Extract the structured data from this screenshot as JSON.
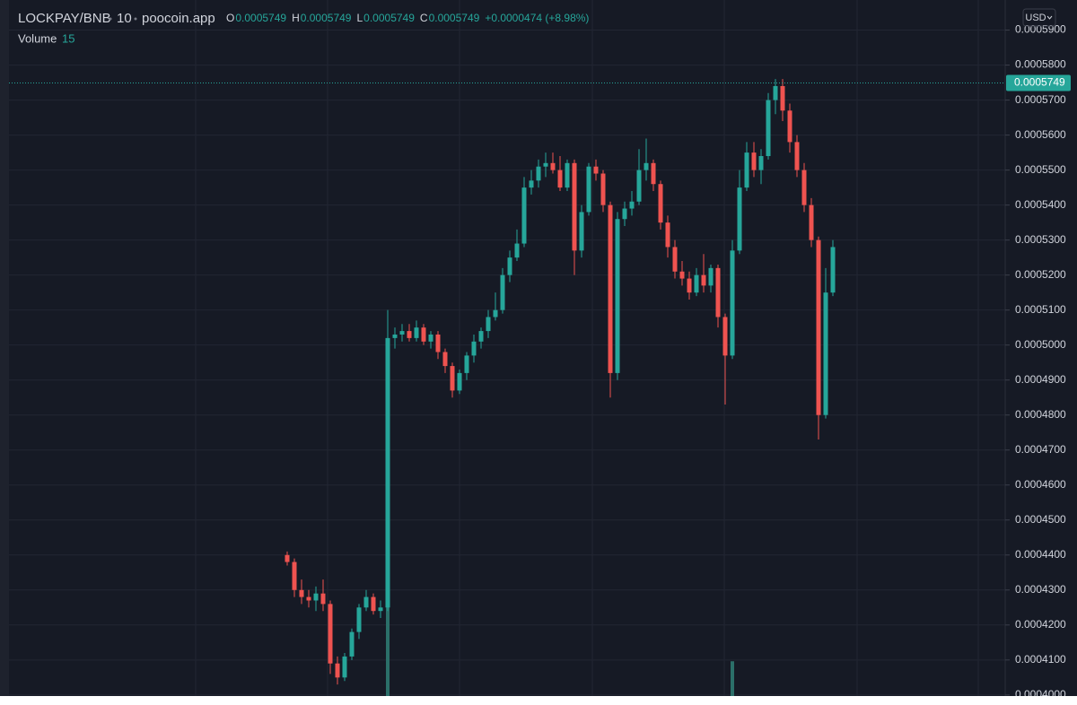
{
  "chart_data": {
    "type": "candlestick",
    "symbol": "LOCKPAY/BNB",
    "interval": "10",
    "source": "poocoin.app",
    "ohlc_legend": [
      {
        "label": "O",
        "value": "0.0005749"
      },
      {
        "label": "H",
        "value": "0.0005749"
      },
      {
        "label": "L",
        "value": "0.0005749"
      },
      {
        "label": "C",
        "value": "0.0005749"
      }
    ],
    "change": "+0.0000474 (+8.98%)",
    "volume_label": "Volume",
    "volume_value": "15",
    "currency": "USD",
    "last_price": 0.0005749,
    "up_color": "#26a69a",
    "down_color": "#ef5350",
    "volume_color": "#2b6f69",
    "ylim": [
      0.0003997,
      0.0005986
    ],
    "yticks": [
      {
        "value": 0.0004,
        "label": "0.0004000"
      },
      {
        "value": 0.00041,
        "label": "0.0004100"
      },
      {
        "value": 0.00042,
        "label": "0.0004200"
      },
      {
        "value": 0.00043,
        "label": "0.0004300"
      },
      {
        "value": 0.00044,
        "label": "0.0004400"
      },
      {
        "value": 0.00045,
        "label": "0.0004500"
      },
      {
        "value": 0.00046,
        "label": "0.0004600"
      },
      {
        "value": 0.00047,
        "label": "0.0004700"
      },
      {
        "value": 0.00048,
        "label": "0.0004800"
      },
      {
        "value": 0.00049,
        "label": "0.0004900"
      },
      {
        "value": 0.0005,
        "label": "0.0005000"
      },
      {
        "value": 0.00051,
        "label": "0.0005100"
      },
      {
        "value": 0.00052,
        "label": "0.0005200"
      },
      {
        "value": 0.00053,
        "label": "0.0005300"
      },
      {
        "value": 0.00054,
        "label": "0.0005400"
      },
      {
        "value": 0.00055,
        "label": "0.0005500"
      },
      {
        "value": 0.00056,
        "label": "0.0005600"
      },
      {
        "value": 0.00057,
        "label": "0.0005700"
      },
      {
        "value": 0.00058,
        "label": "0.0005800"
      },
      {
        "value": 0.00059,
        "label": "0.0005900"
      }
    ],
    "grid": true,
    "open": [
      0.00044,
      0.000438,
      0.00043,
      0.000428,
      0.000427,
      0.000429,
      0.000426,
      0.000409,
      0.000405,
      0.000411,
      0.000418,
      0.000425,
      0.000428,
      0.000424,
      0.000425,
      0.000502,
      0.000503,
      0.000504,
      0.000502,
      0.000505,
      0.000501,
      0.000503,
      0.000498,
      0.000494,
      0.000487,
      0.000492,
      0.000497,
      0.000501,
      0.000504,
      0.000508,
      0.00051,
      0.00052,
      0.000525,
      0.000529,
      0.000545,
      0.000547,
      0.000551,
      0.000552,
      0.00055,
      0.000545,
      0.000552,
      0.000527,
      0.000538,
      0.000551,
      0.000549,
      0.00054,
      0.000492,
      0.000536,
      0.000539,
      0.000541,
      0.00055,
      0.000552,
      0.000546,
      0.000535,
      0.000528,
      0.000521,
      0.000519,
      0.000515,
      0.00052,
      0.000517,
      0.000522,
      0.000508,
      0.000497,
      0.000527,
      0.000545,
      0.000555,
      0.00055,
      0.000554,
      0.00057,
      0.000574,
      0.000567,
      0.000558,
      0.00055,
      0.00054,
      0.00053,
      0.00048,
      0.000515
    ],
    "high": [
      0.000441,
      0.000439,
      0.000433,
      0.00043,
      0.000431,
      0.000433,
      0.000427,
      0.000411,
      0.000412,
      0.000419,
      0.000426,
      0.00043,
      0.000429,
      0.000427,
      0.00051,
      0.000505,
      0.000506,
      0.000506,
      0.000507,
      0.000506,
      0.000504,
      0.000504,
      0.000499,
      0.000495,
      0.000493,
      0.000498,
      0.000503,
      0.000505,
      0.00051,
      0.000515,
      0.000522,
      0.000527,
      0.000533,
      0.000548,
      0.00055,
      0.000553,
      0.000555,
      0.000555,
      0.000554,
      0.000553,
      0.000553,
      0.00054,
      0.000552,
      0.000553,
      0.00055,
      0.000541,
      0.000538,
      0.000541,
      0.000544,
      0.000556,
      0.000559,
      0.000553,
      0.000547,
      0.000537,
      0.00053,
      0.000524,
      0.000521,
      0.000522,
      0.000526,
      0.000523,
      0.000523,
      0.000509,
      0.00053,
      0.00055,
      0.000558,
      0.000558,
      0.000556,
      0.000572,
      0.000576,
      0.000576,
      0.000569,
      0.00056,
      0.000552,
      0.000542,
      0.000531,
      0.000522,
      0.00053
    ],
    "low": [
      0.000437,
      0.000428,
      0.000426,
      0.000425,
      0.000424,
      0.000424,
      0.000406,
      0.000403,
      0.000404,
      0.00041,
      0.000416,
      0.000424,
      0.000423,
      0.000422,
      0.000424,
      0.000499,
      0.000501,
      0.000501,
      0.000501,
      0.0005,
      0.000499,
      0.000496,
      0.000492,
      0.000485,
      0.000486,
      0.00049,
      0.000495,
      0.000499,
      0.000502,
      0.000507,
      0.000509,
      0.000518,
      0.000524,
      0.000528,
      0.000543,
      0.000545,
      0.000548,
      0.000549,
      0.000544,
      0.000544,
      0.00052,
      0.000525,
      0.000537,
      0.000547,
      0.000538,
      0.000485,
      0.00049,
      0.000534,
      0.000537,
      0.00054,
      0.000547,
      0.000544,
      0.000533,
      0.000525,
      0.000519,
      0.000517,
      0.000513,
      0.000514,
      0.000515,
      0.000515,
      0.000505,
      0.000483,
      0.000496,
      0.000526,
      0.000544,
      0.000548,
      0.000546,
      0.000553,
      0.000566,
      0.000564,
      0.000555,
      0.000548,
      0.000538,
      0.000528,
      0.000473,
      0.000479,
      0.000514
    ],
    "close": [
      0.000438,
      0.00043,
      0.000428,
      0.000427,
      0.000429,
      0.000426,
      0.000409,
      0.000405,
      0.000411,
      0.000418,
      0.000425,
      0.000428,
      0.000424,
      0.000425,
      0.000502,
      0.000503,
      0.000504,
      0.000502,
      0.000505,
      0.000501,
      0.000503,
      0.000498,
      0.000494,
      0.000487,
      0.000492,
      0.000497,
      0.000501,
      0.000504,
      0.000508,
      0.00051,
      0.00052,
      0.000525,
      0.000529,
      0.000545,
      0.000547,
      0.000551,
      0.000552,
      0.00055,
      0.000545,
      0.000552,
      0.000527,
      0.000538,
      0.000551,
      0.000549,
      0.00054,
      0.000492,
      0.000536,
      0.000539,
      0.000541,
      0.00055,
      0.000552,
      0.000546,
      0.000535,
      0.000528,
      0.000521,
      0.000519,
      0.000515,
      0.00052,
      0.000517,
      0.000522,
      0.000508,
      0.000497,
      0.000527,
      0.000545,
      0.000555,
      0.00055,
      0.000554,
      0.00057,
      0.000574,
      0.000567,
      0.000558,
      0.00055,
      0.00054,
      0.00053,
      0.00048,
      0.000515,
      0.000528
    ],
    "volume": [
      null,
      null,
      null,
      null,
      null,
      null,
      null,
      null,
      null,
      null,
      null,
      null,
      null,
      null,
      160,
      null,
      null,
      null,
      null,
      null,
      null,
      null,
      null,
      null,
      null,
      null,
      null,
      null,
      null,
      null,
      null,
      null,
      null,
      null,
      null,
      null,
      null,
      null,
      null,
      null,
      null,
      null,
      null,
      null,
      null,
      null,
      null,
      null,
      null,
      null,
      null,
      null,
      null,
      null,
      null,
      null,
      null,
      null,
      null,
      null,
      null,
      null,
      40,
      null,
      null,
      null,
      null,
      null,
      null,
      null,
      null,
      null,
      null,
      null,
      null,
      null,
      null
    ]
  }
}
